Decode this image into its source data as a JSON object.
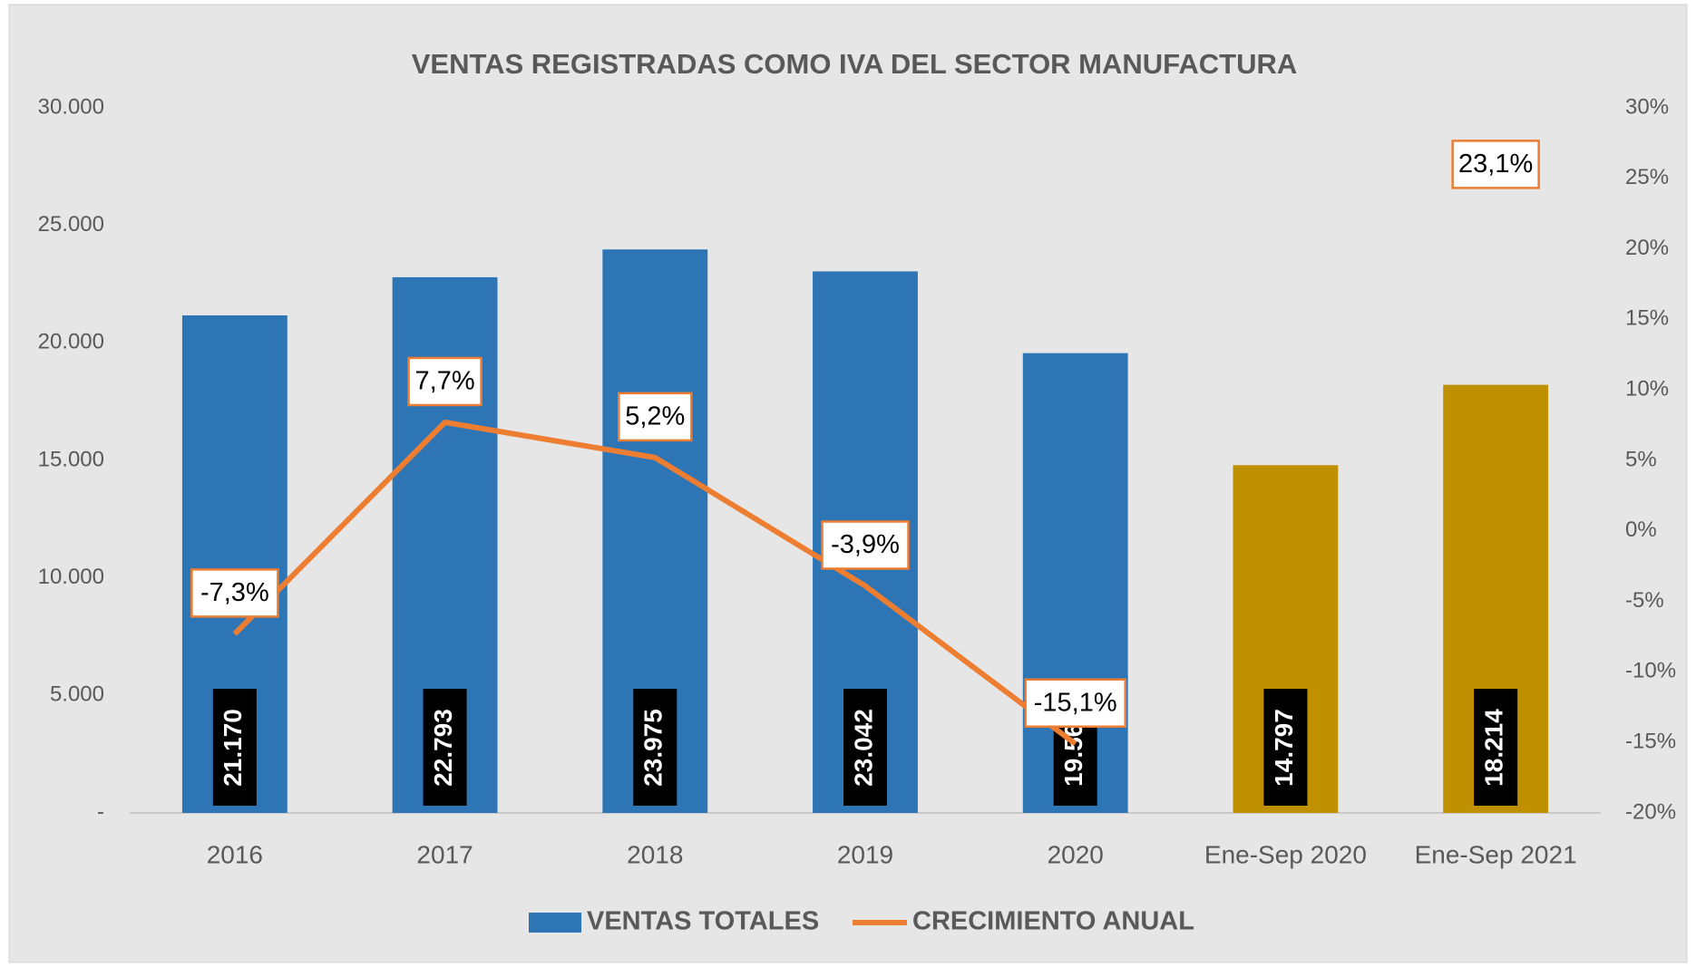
{
  "chart_data": {
    "type": "bar",
    "title": "VENTAS REGISTRADAS COMO IVA DEL SECTOR  MANUFACTURA",
    "categories": [
      "2016",
      "2017",
      "2018",
      "2019",
      "2020",
      "Ene-Sep 2020",
      "Ene-Sep 2021"
    ],
    "series": [
      {
        "name": "VENTAS TOTALES",
        "color": "#2e75b6",
        "colors": [
          "#2e75b6",
          "#2e75b6",
          "#2e75b6",
          "#2e75b6",
          "#2e75b6",
          "#bf9000",
          "#bf9000"
        ],
        "values": [
          21170,
          22793,
          23975,
          23042,
          19563,
          14797,
          18214
        ],
        "value_labels": [
          "21.170",
          "22.793",
          "23.975",
          "23.042",
          "19.563",
          "14.797",
          "18.214"
        ]
      },
      {
        "name": "CRECIMIENTO ANUAL",
        "color": "#ed7d31",
        "type": "line",
        "axis": "y2",
        "values": [
          -7.3,
          7.7,
          5.2,
          -3.9,
          -15.1,
          null,
          23.1
        ],
        "value_labels": [
          "-7,3%",
          "7,7%",
          "5,2%",
          "-3,9%",
          "-15,1%",
          null,
          "23,1%"
        ]
      }
    ],
    "ylim": [
      0,
      30000
    ],
    "yticks": [
      {
        "value": 0,
        "label": "-"
      },
      {
        "value": 5000,
        "label": "5.000"
      },
      {
        "value": 10000,
        "label": "10.000"
      },
      {
        "value": 15000,
        "label": "15.000"
      },
      {
        "value": 20000,
        "label": "20.000"
      },
      {
        "value": 25000,
        "label": "25.000"
      },
      {
        "value": 30000,
        "label": "30.000"
      }
    ],
    "y2lim": [
      -20,
      30
    ],
    "y2ticks": [
      {
        "value": -20,
        "label": "-20%"
      },
      {
        "value": -15,
        "label": "-15%"
      },
      {
        "value": -10,
        "label": "-10%"
      },
      {
        "value": -5,
        "label": "-5%"
      },
      {
        "value": 0,
        "label": "0%"
      },
      {
        "value": 5,
        "label": "5%"
      },
      {
        "value": 10,
        "label": "10%"
      },
      {
        "value": 15,
        "label": "15%"
      },
      {
        "value": 20,
        "label": "20%"
      },
      {
        "value": 25,
        "label": "25%"
      },
      {
        "value": 30,
        "label": "30%"
      }
    ],
    "legend": "bottom"
  }
}
